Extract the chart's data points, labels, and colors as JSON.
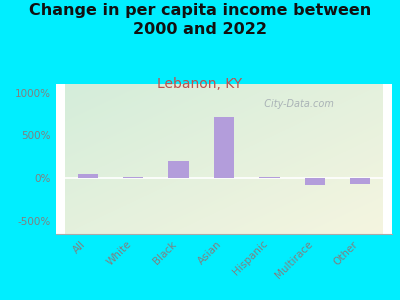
{
  "title": "Change in per capita income between\n2000 and 2022",
  "subtitle": "Lebanon, KY",
  "categories": [
    "All",
    "White",
    "Black",
    "Asian",
    "Hispanic",
    "Multirace",
    "Other"
  ],
  "values": [
    55,
    20,
    200,
    720,
    20,
    -75,
    -70
  ],
  "bar_color": "#b39ddb",
  "background_outer": "#00eeff",
  "background_inner_top_left": "#d4edda",
  "background_inner_bottom_right": "#f5f5e0",
  "title_fontsize": 11.5,
  "subtitle_fontsize": 10,
  "subtitle_color": "#c0504d",
  "tick_label_color": "#808080",
  "ylim": [
    -650,
    1100
  ],
  "yticks": [
    -500,
    0,
    500,
    1000
  ],
  "ytick_labels": [
    "-500%",
    "0%",
    "500%",
    "1000%"
  ],
  "watermark": "  City-Data.com"
}
